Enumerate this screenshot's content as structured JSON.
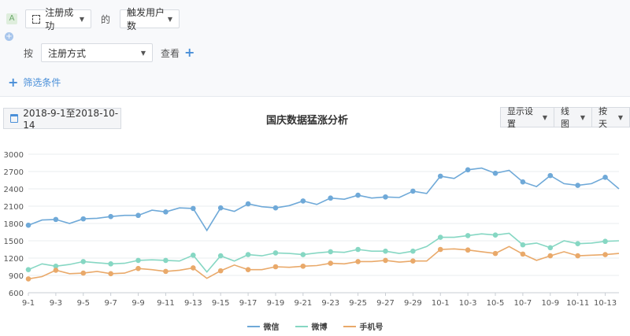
{
  "query": {
    "event_badge": "A",
    "event_select": "注册成功",
    "connector": "的",
    "metric_select": "触发用户数",
    "by_label": "按",
    "group_select": "注册方式",
    "view_label": "查看",
    "filter_label": "筛选条件"
  },
  "toolbar": {
    "date_range": "2018-9-1至2018-10-14",
    "title": "国庆数据猛涨分析",
    "display_settings": "显示设置",
    "chart_type": "线图",
    "granularity": "按天"
  },
  "colors": {
    "wechat": "#6fa9d8",
    "weibo": "#86d7c3",
    "phone": "#e9a96a",
    "accent": "#4a8fd8"
  },
  "chart_data": {
    "type": "line",
    "x": [
      "9-1",
      "9-2",
      "9-3",
      "9-4",
      "9-5",
      "9-6",
      "9-7",
      "9-8",
      "9-9",
      "9-10",
      "9-11",
      "9-12",
      "9-13",
      "9-14",
      "9-15",
      "9-16",
      "9-17",
      "9-18",
      "9-19",
      "9-20",
      "9-21",
      "9-22",
      "9-23",
      "9-24",
      "9-25",
      "9-26",
      "9-27",
      "9-28",
      "9-29",
      "9-30",
      "10-1",
      "10-2",
      "10-3",
      "10-4",
      "10-5",
      "10-6",
      "10-7",
      "10-8",
      "10-9",
      "10-10",
      "10-11",
      "10-12",
      "10-13",
      "10-14"
    ],
    "xticks": [
      "9-1",
      "9-3",
      "9-5",
      "9-7",
      "9-9",
      "9-11",
      "9-13",
      "9-15",
      "9-17",
      "9-19",
      "9-21",
      "9-23",
      "9-25",
      "9-27",
      "9-29",
      "10-1",
      "10-3",
      "10-5",
      "10-7",
      "10-9",
      "10-11",
      "10-13"
    ],
    "ylim": [
      600,
      3000
    ],
    "yticks": [
      600,
      900,
      1200,
      1500,
      1800,
      2100,
      2400,
      2700,
      3000
    ],
    "series": [
      {
        "name": "微信",
        "key": "wechat",
        "values": [
          1770,
          1860,
          1870,
          1800,
          1880,
          1890,
          1920,
          1940,
          1940,
          2030,
          2000,
          2070,
          2060,
          1680,
          2070,
          2010,
          2140,
          2090,
          2070,
          2110,
          2190,
          2130,
          2240,
          2220,
          2290,
          2240,
          2260,
          2250,
          2360,
          2320,
          2620,
          2580,
          2730,
          2760,
          2670,
          2720,
          2520,
          2440,
          2630,
          2490,
          2460,
          2490,
          2600,
          2400
        ]
      },
      {
        "name": "微博",
        "key": "weibo",
        "values": [
          1000,
          1100,
          1060,
          1090,
          1140,
          1120,
          1100,
          1110,
          1160,
          1170,
          1160,
          1150,
          1250,
          960,
          1240,
          1150,
          1260,
          1240,
          1290,
          1280,
          1260,
          1290,
          1310,
          1300,
          1350,
          1320,
          1320,
          1280,
          1320,
          1400,
          1560,
          1560,
          1590,
          1620,
          1600,
          1630,
          1430,
          1460,
          1380,
          1500,
          1450,
          1460,
          1490,
          1500
        ]
      },
      {
        "name": "手机号",
        "key": "phone",
        "values": [
          840,
          880,
          990,
          930,
          940,
          970,
          930,
          940,
          1020,
          1000,
          970,
          990,
          1030,
          850,
          980,
          1080,
          1000,
          1000,
          1050,
          1040,
          1060,
          1070,
          1110,
          1100,
          1140,
          1140,
          1160,
          1130,
          1150,
          1150,
          1350,
          1360,
          1340,
          1310,
          1280,
          1400,
          1270,
          1160,
          1240,
          1310,
          1240,
          1250,
          1260,
          1280
        ]
      }
    ],
    "grid": true,
    "legend_position": "bottom"
  }
}
